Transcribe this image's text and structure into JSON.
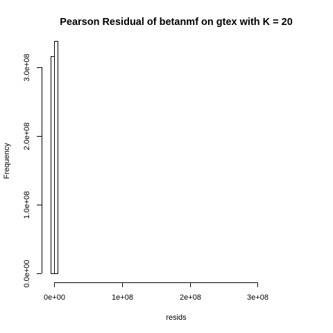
{
  "chart_data": {
    "type": "bar",
    "title": "Pearson Residual of betanmf on gtex with K = 20",
    "xlabel": "resids",
    "ylabel": "Frequency",
    "bin_width": 5000000,
    "bins": [
      {
        "start": -5000000,
        "end": 0,
        "count": 316000000
      },
      {
        "start": 0,
        "end": 5000000,
        "count": 338000000
      },
      {
        "start": 5000000,
        "end": 10000000,
        "count": 500000
      },
      {
        "start": 10000000,
        "end": 365000000,
        "count": 0
      }
    ],
    "xlim": [
      -5000000,
      365000000
    ],
    "ylim": [
      0,
      340000000
    ],
    "xticks": [
      {
        "value": 0,
        "label": "0e+00"
      },
      {
        "value": 100000000,
        "label": "1e+08"
      },
      {
        "value": 200000000,
        "label": "2e+08"
      },
      {
        "value": 300000000,
        "label": "3e+08"
      }
    ],
    "yticks": [
      {
        "value": 0,
        "label": "0.0e+00"
      },
      {
        "value": 100000000,
        "label": "1.0e+08"
      },
      {
        "value": 200000000,
        "label": "2.0e+08"
      },
      {
        "value": 300000000,
        "label": "3.0e+08"
      }
    ],
    "grid": false,
    "legend": "none",
    "colors": {
      "bar_fill": "#ffffff",
      "bar_stroke": "#000000",
      "background": "#ffffff"
    }
  }
}
